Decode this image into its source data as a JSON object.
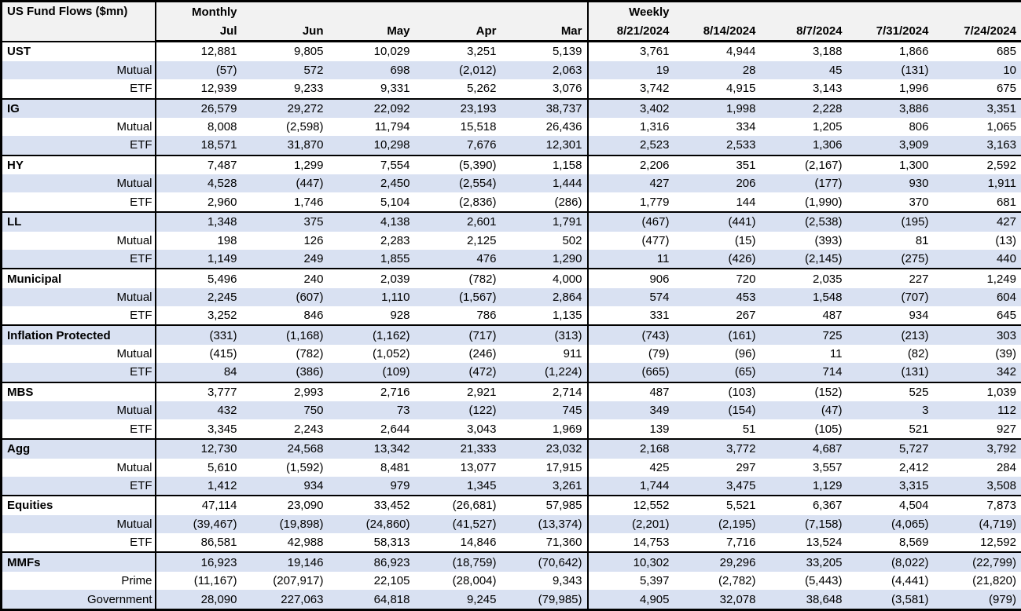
{
  "colors": {
    "stripe": "#D9E1F2",
    "header_bg": "#F2F2F2",
    "border": "#000000",
    "text": "#000000"
  },
  "chart_data": {
    "type": "table",
    "title": "US Fund Flows ($mn)",
    "section_labels": {
      "monthly": "Monthly",
      "weekly": "Weekly"
    },
    "columns": {
      "monthly": [
        "Jul",
        "Jun",
        "May",
        "Apr",
        "Mar"
      ],
      "weekly": [
        "8/21/2024",
        "8/14/2024",
        "8/7/2024",
        "7/31/2024",
        "7/24/2024"
      ]
    },
    "negative_format": "parentheses",
    "groups": [
      {
        "rows": [
          {
            "label": "UST",
            "style": "group",
            "monthly": [
              12881,
              9805,
              10029,
              3251,
              5139
            ],
            "weekly": [
              3761,
              4944,
              3188,
              1866,
              685
            ]
          },
          {
            "label": "Mutual",
            "style": "sub",
            "monthly": [
              -57,
              572,
              698,
              -2012,
              2063
            ],
            "weekly": [
              19,
              28,
              45,
              -131,
              10
            ]
          },
          {
            "label": "ETF",
            "style": "sub",
            "monthly": [
              12939,
              9233,
              9331,
              5262,
              3076
            ],
            "weekly": [
              3742,
              4915,
              3143,
              1996,
              675
            ]
          }
        ]
      },
      {
        "rows": [
          {
            "label": "IG",
            "style": "group",
            "monthly": [
              26579,
              29272,
              22092,
              23193,
              38737
            ],
            "weekly": [
              3402,
              1998,
              2228,
              3886,
              3351
            ]
          },
          {
            "label": "Mutual",
            "style": "sub",
            "monthly": [
              8008,
              -2598,
              11794,
              15518,
              26436
            ],
            "weekly": [
              1316,
              334,
              1205,
              806,
              1065
            ]
          },
          {
            "label": "ETF",
            "style": "sub",
            "monthly": [
              18571,
              31870,
              10298,
              7676,
              12301
            ],
            "weekly": [
              2523,
              2533,
              1306,
              3909,
              3163
            ]
          }
        ]
      },
      {
        "rows": [
          {
            "label": "HY",
            "style": "group",
            "monthly": [
              7487,
              1299,
              7554,
              -5390,
              1158
            ],
            "weekly": [
              2206,
              351,
              -2167,
              1300,
              2592
            ]
          },
          {
            "label": "Mutual",
            "style": "sub",
            "monthly": [
              4528,
              -447,
              2450,
              -2554,
              1444
            ],
            "weekly": [
              427,
              206,
              -177,
              930,
              1911
            ]
          },
          {
            "label": "ETF",
            "style": "sub",
            "monthly": [
              2960,
              1746,
              5104,
              -2836,
              -286
            ],
            "weekly": [
              1779,
              144,
              -1990,
              370,
              681
            ]
          }
        ]
      },
      {
        "rows": [
          {
            "label": "LL",
            "style": "group",
            "monthly": [
              1348,
              375,
              4138,
              2601,
              1791
            ],
            "weekly": [
              -467,
              -441,
              -2538,
              -195,
              427
            ]
          },
          {
            "label": "Mutual",
            "style": "sub",
            "monthly": [
              198,
              126,
              2283,
              2125,
              502
            ],
            "weekly": [
              -477,
              -15,
              -393,
              81,
              -13
            ]
          },
          {
            "label": "ETF",
            "style": "sub",
            "monthly": [
              1149,
              249,
              1855,
              476,
              1290
            ],
            "weekly": [
              11,
              -426,
              -2145,
              -275,
              440
            ]
          }
        ]
      },
      {
        "rows": [
          {
            "label": "Municipal",
            "style": "group",
            "monthly": [
              5496,
              240,
              2039,
              -782,
              4000
            ],
            "weekly": [
              906,
              720,
              2035,
              227,
              1249
            ]
          },
          {
            "label": "Mutual",
            "style": "sub",
            "monthly": [
              2245,
              -607,
              1110,
              -1567,
              2864
            ],
            "weekly": [
              574,
              453,
              1548,
              -707,
              604
            ]
          },
          {
            "label": "ETF",
            "style": "sub",
            "monthly": [
              3252,
              846,
              928,
              786,
              1135
            ],
            "weekly": [
              331,
              267,
              487,
              934,
              645
            ]
          }
        ]
      },
      {
        "rows": [
          {
            "label": "Inflation Protected",
            "style": "group",
            "monthly": [
              -331,
              -1168,
              -1162,
              -717,
              -313
            ],
            "weekly": [
              -743,
              -161,
              725,
              -213,
              303
            ]
          },
          {
            "label": "Mutual",
            "style": "sub",
            "monthly": [
              -415,
              -782,
              -1052,
              -246,
              911
            ],
            "weekly": [
              -79,
              -96,
              11,
              -82,
              -39
            ]
          },
          {
            "label": "ETF",
            "style": "sub",
            "monthly": [
              84,
              -386,
              -109,
              -472,
              -1224
            ],
            "weekly": [
              -665,
              -65,
              714,
              -131,
              342
            ]
          }
        ]
      },
      {
        "rows": [
          {
            "label": "MBS",
            "style": "group",
            "monthly": [
              3777,
              2993,
              2716,
              2921,
              2714
            ],
            "weekly": [
              487,
              -103,
              -152,
              525,
              1039
            ]
          },
          {
            "label": "Mutual",
            "style": "sub",
            "monthly": [
              432,
              750,
              73,
              -122,
              745
            ],
            "weekly": [
              349,
              -154,
              -47,
              3,
              112
            ]
          },
          {
            "label": "ETF",
            "style": "sub",
            "monthly": [
              3345,
              2243,
              2644,
              3043,
              1969
            ],
            "weekly": [
              139,
              51,
              -105,
              521,
              927
            ]
          }
        ]
      },
      {
        "rows": [
          {
            "label": "Agg",
            "style": "group",
            "monthly": [
              12730,
              24568,
              13342,
              21333,
              23032
            ],
            "weekly": [
              2168,
              3772,
              4687,
              5727,
              3792
            ]
          },
          {
            "label": "Mutual",
            "style": "sub",
            "monthly": [
              5610,
              -1592,
              8481,
              13077,
              17915
            ],
            "weekly": [
              425,
              297,
              3557,
              2412,
              284
            ]
          },
          {
            "label": "ETF",
            "style": "sub",
            "monthly": [
              1412,
              934,
              979,
              1345,
              3261
            ],
            "weekly": [
              1744,
              3475,
              1129,
              3315,
              3508
            ]
          }
        ]
      },
      {
        "rows": [
          {
            "label": "Equities",
            "style": "group",
            "monthly": [
              47114,
              23090,
              33452,
              -26681,
              57985
            ],
            "weekly": [
              12552,
              5521,
              6367,
              4504,
              7873
            ]
          },
          {
            "label": "Mutual",
            "style": "sub",
            "monthly": [
              -39467,
              -19898,
              -24860,
              -41527,
              -13374
            ],
            "weekly": [
              -2201,
              -2195,
              -7158,
              -4065,
              -4719
            ]
          },
          {
            "label": "ETF",
            "style": "sub",
            "monthly": [
              86581,
              42988,
              58313,
              14846,
              71360
            ],
            "weekly": [
              14753,
              7716,
              13524,
              8569,
              12592
            ]
          }
        ]
      },
      {
        "rows": [
          {
            "label": "MMFs",
            "style": "group",
            "monthly": [
              16923,
              19146,
              86923,
              -18759,
              -70642
            ],
            "weekly": [
              10302,
              29296,
              33205,
              -8022,
              -22799
            ]
          },
          {
            "label": "Prime",
            "style": "sub",
            "monthly": [
              -11167,
              -207917,
              22105,
              -28004,
              9343
            ],
            "weekly": [
              5397,
              -2782,
              -5443,
              -4441,
              -21820
            ]
          },
          {
            "label": "Government",
            "style": "sub",
            "monthly": [
              28090,
              227063,
              64818,
              9245,
              -79985
            ],
            "weekly": [
              4905,
              32078,
              38648,
              -3581,
              -979
            ]
          }
        ]
      }
    ]
  }
}
